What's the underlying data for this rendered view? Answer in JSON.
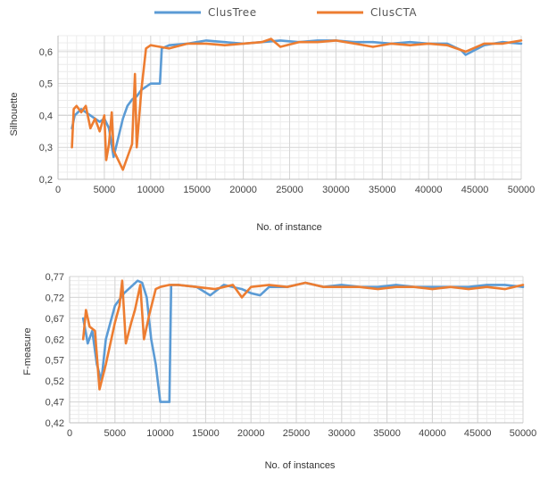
{
  "legend": [
    {
      "name": "ClusTree",
      "color": "#5b9bd5"
    },
    {
      "name": "ClusCTA",
      "color": "#ed7d31"
    }
  ],
  "chart_data": [
    {
      "type": "line",
      "xlabel": "No. of instance",
      "ylabel": "Silhouette",
      "xlim": [
        0,
        50000
      ],
      "ylim": [
        0.2,
        0.65
      ],
      "x_ticks": [
        0,
        5000,
        10000,
        15000,
        20000,
        25000,
        30000,
        35000,
        40000,
        45000,
        50000
      ],
      "y_ticks": [
        0.2,
        0.3,
        0.4,
        0.5,
        0.6
      ],
      "y_tick_labels": [
        "0,2",
        "0,3",
        "0,4",
        "0,5",
        "0,6"
      ],
      "grid": true,
      "series": [
        {
          "name": "ClusTree",
          "color": "#5b9bd5",
          "points": [
            [
              1500,
              0.36
            ],
            [
              1800,
              0.4
            ],
            [
              2500,
              0.42
            ],
            [
              3500,
              0.4
            ],
            [
              4500,
              0.38
            ],
            [
              5000,
              0.39
            ],
            [
              5500,
              0.36
            ],
            [
              6000,
              0.27
            ],
            [
              6500,
              0.33
            ],
            [
              7000,
              0.39
            ],
            [
              7500,
              0.43
            ],
            [
              8000,
              0.45
            ],
            [
              8500,
              0.46
            ],
            [
              9000,
              0.48
            ],
            [
              10000,
              0.5
            ],
            [
              11000,
              0.5
            ],
            [
              11200,
              0.61
            ],
            [
              12000,
              0.62
            ],
            [
              14000,
              0.625
            ],
            [
              16000,
              0.635
            ],
            [
              18000,
              0.63
            ],
            [
              20000,
              0.625
            ],
            [
              22000,
              0.63
            ],
            [
              24000,
              0.635
            ],
            [
              26000,
              0.63
            ],
            [
              28000,
              0.635
            ],
            [
              30000,
              0.635
            ],
            [
              32000,
              0.63
            ],
            [
              34000,
              0.63
            ],
            [
              36000,
              0.625
            ],
            [
              38000,
              0.63
            ],
            [
              40000,
              0.625
            ],
            [
              42000,
              0.625
            ],
            [
              43500,
              0.605
            ],
            [
              44000,
              0.59
            ],
            [
              46000,
              0.62
            ],
            [
              48000,
              0.63
            ],
            [
              50000,
              0.625
            ]
          ]
        },
        {
          "name": "ClusCTA",
          "color": "#ed7d31",
          "points": [
            [
              1500,
              0.3
            ],
            [
              1700,
              0.42
            ],
            [
              2000,
              0.43
            ],
            [
              2500,
              0.41
            ],
            [
              3000,
              0.43
            ],
            [
              3500,
              0.36
            ],
            [
              4000,
              0.39
            ],
            [
              4500,
              0.35
            ],
            [
              5000,
              0.4
            ],
            [
              5200,
              0.26
            ],
            [
              5500,
              0.31
            ],
            [
              5800,
              0.41
            ],
            [
              6000,
              0.29
            ],
            [
              6500,
              0.26
            ],
            [
              7000,
              0.23
            ],
            [
              7500,
              0.27
            ],
            [
              8000,
              0.31
            ],
            [
              8300,
              0.53
            ],
            [
              8500,
              0.3
            ],
            [
              9000,
              0.48
            ],
            [
              9500,
              0.61
            ],
            [
              10000,
              0.62
            ],
            [
              11000,
              0.615
            ],
            [
              12000,
              0.61
            ],
            [
              14000,
              0.625
            ],
            [
              16000,
              0.625
            ],
            [
              18000,
              0.62
            ],
            [
              20000,
              0.625
            ],
            [
              22000,
              0.63
            ],
            [
              23000,
              0.64
            ],
            [
              24000,
              0.615
            ],
            [
              26000,
              0.63
            ],
            [
              28000,
              0.63
            ],
            [
              30000,
              0.635
            ],
            [
              32000,
              0.625
            ],
            [
              34000,
              0.615
            ],
            [
              36000,
              0.625
            ],
            [
              38000,
              0.62
            ],
            [
              40000,
              0.625
            ],
            [
              42000,
              0.62
            ],
            [
              44000,
              0.6
            ],
            [
              46000,
              0.625
            ],
            [
              48000,
              0.625
            ],
            [
              50000,
              0.635
            ]
          ]
        }
      ]
    },
    {
      "type": "line",
      "xlabel": "No. of instances",
      "ylabel": "F-measure",
      "xlim": [
        0,
        50000
      ],
      "ylim": [
        0.42,
        0.77
      ],
      "x_ticks": [
        0,
        5000,
        10000,
        15000,
        20000,
        25000,
        30000,
        35000,
        40000,
        45000,
        50000
      ],
      "y_ticks": [
        0.42,
        0.47,
        0.52,
        0.57,
        0.62,
        0.67,
        0.72,
        0.77
      ],
      "y_tick_labels": [
        "0,42",
        "0,47",
        "0,52",
        "0,57",
        "0,62",
        "0,67",
        "0,72",
        "0,77"
      ],
      "grid": true,
      "series": [
        {
          "name": "ClusTree",
          "color": "#5b9bd5",
          "points": [
            [
              1500,
              0.67
            ],
            [
              2000,
              0.61
            ],
            [
              2500,
              0.64
            ],
            [
              3000,
              0.56
            ],
            [
              3500,
              0.52
            ],
            [
              4000,
              0.62
            ],
            [
              4500,
              0.66
            ],
            [
              5000,
              0.7
            ],
            [
              6000,
              0.73
            ],
            [
              7000,
              0.75
            ],
            [
              7500,
              0.76
            ],
            [
              8000,
              0.755
            ],
            [
              8500,
              0.72
            ],
            [
              9000,
              0.62
            ],
            [
              9500,
              0.56
            ],
            [
              10000,
              0.47
            ],
            [
              11000,
              0.47
            ],
            [
              11200,
              0.75
            ],
            [
              12000,
              0.75
            ],
            [
              14000,
              0.745
            ],
            [
              15500,
              0.725
            ],
            [
              17000,
              0.75
            ],
            [
              19000,
              0.74
            ],
            [
              20000,
              0.73
            ],
            [
              21000,
              0.725
            ],
            [
              22000,
              0.745
            ],
            [
              24000,
              0.745
            ],
            [
              26000,
              0.755
            ],
            [
              28000,
              0.745
            ],
            [
              30000,
              0.75
            ],
            [
              32000,
              0.745
            ],
            [
              34000,
              0.745
            ],
            [
              36000,
              0.75
            ],
            [
              38000,
              0.745
            ],
            [
              40000,
              0.745
            ],
            [
              42000,
              0.745
            ],
            [
              44000,
              0.745
            ],
            [
              46000,
              0.75
            ],
            [
              48000,
              0.75
            ],
            [
              50000,
              0.745
            ]
          ]
        },
        {
          "name": "ClusCTA",
          "color": "#ed7d31",
          "points": [
            [
              1500,
              0.62
            ],
            [
              1800,
              0.69
            ],
            [
              2200,
              0.65
            ],
            [
              2800,
              0.64
            ],
            [
              3300,
              0.5
            ],
            [
              4000,
              0.56
            ],
            [
              4500,
              0.61
            ],
            [
              5000,
              0.66
            ],
            [
              5500,
              0.7
            ],
            [
              5800,
              0.76
            ],
            [
              6200,
              0.61
            ],
            [
              6800,
              0.66
            ],
            [
              7200,
              0.69
            ],
            [
              7800,
              0.75
            ],
            [
              8200,
              0.62
            ],
            [
              8800,
              0.68
            ],
            [
              9500,
              0.74
            ],
            [
              10000,
              0.745
            ],
            [
              11000,
              0.75
            ],
            [
              12000,
              0.75
            ],
            [
              14000,
              0.745
            ],
            [
              16000,
              0.74
            ],
            [
              18000,
              0.75
            ],
            [
              19000,
              0.72
            ],
            [
              20000,
              0.745
            ],
            [
              22000,
              0.75
            ],
            [
              24000,
              0.745
            ],
            [
              26000,
              0.755
            ],
            [
              28000,
              0.745
            ],
            [
              30000,
              0.745
            ],
            [
              32000,
              0.745
            ],
            [
              34000,
              0.74
            ],
            [
              36000,
              0.745
            ],
            [
              38000,
              0.745
            ],
            [
              40000,
              0.74
            ],
            [
              42000,
              0.745
            ],
            [
              44000,
              0.74
            ],
            [
              46000,
              0.745
            ],
            [
              48000,
              0.74
            ],
            [
              50000,
              0.75
            ]
          ]
        }
      ]
    }
  ]
}
